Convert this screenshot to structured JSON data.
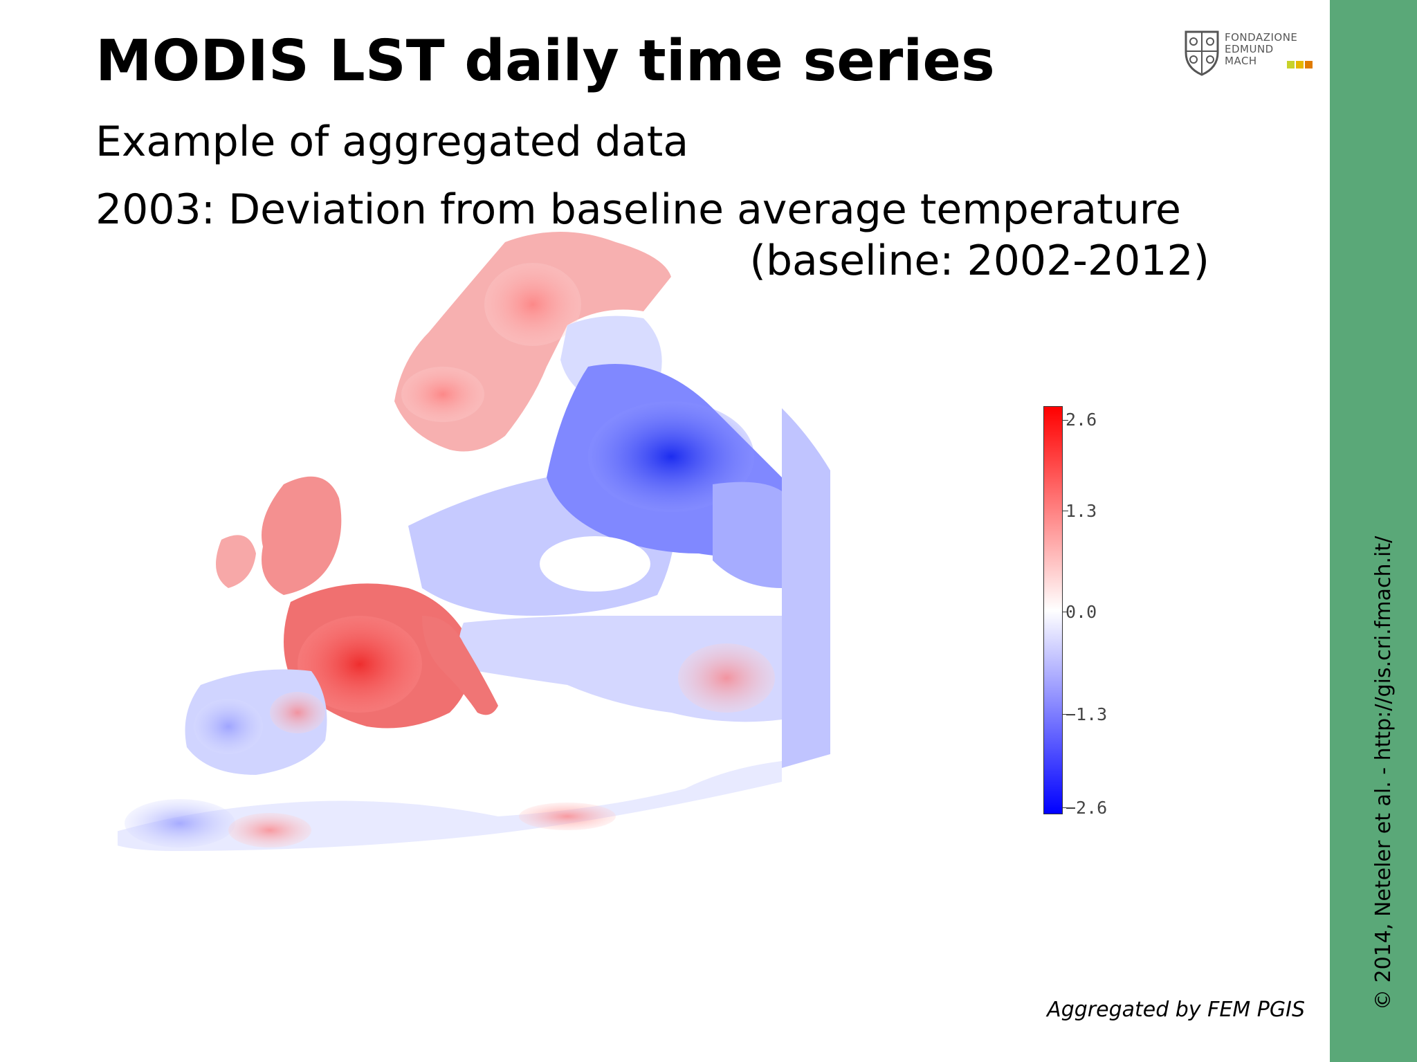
{
  "slide": {
    "title": "MODIS LST daily time series",
    "subtitle": "Example of aggregated data",
    "heading_line1": "2003: Deviation from baseline average temperature",
    "heading_line2": "(baseline: 2002-2012)",
    "credit": "Aggregated by FEM PGIS",
    "copyright": "© 2014, Neteler et al. - http://gis.cri.fmach.it/"
  },
  "logo": {
    "lines": [
      "FONDAZIONE",
      "EDMUND",
      "MACH"
    ]
  },
  "legend": {
    "labels": [
      "2.6",
      "1.3",
      "0.0",
      "−1.3",
      "−2.6"
    ],
    "color_high": "#ff0000",
    "color_mid": "#ffffff",
    "color_low": "#0000ff"
  },
  "colors": {
    "sidebar": "#5aa878",
    "logo_squares": [
      "#c8d22a",
      "#e6b800",
      "#e07b00"
    ]
  }
}
